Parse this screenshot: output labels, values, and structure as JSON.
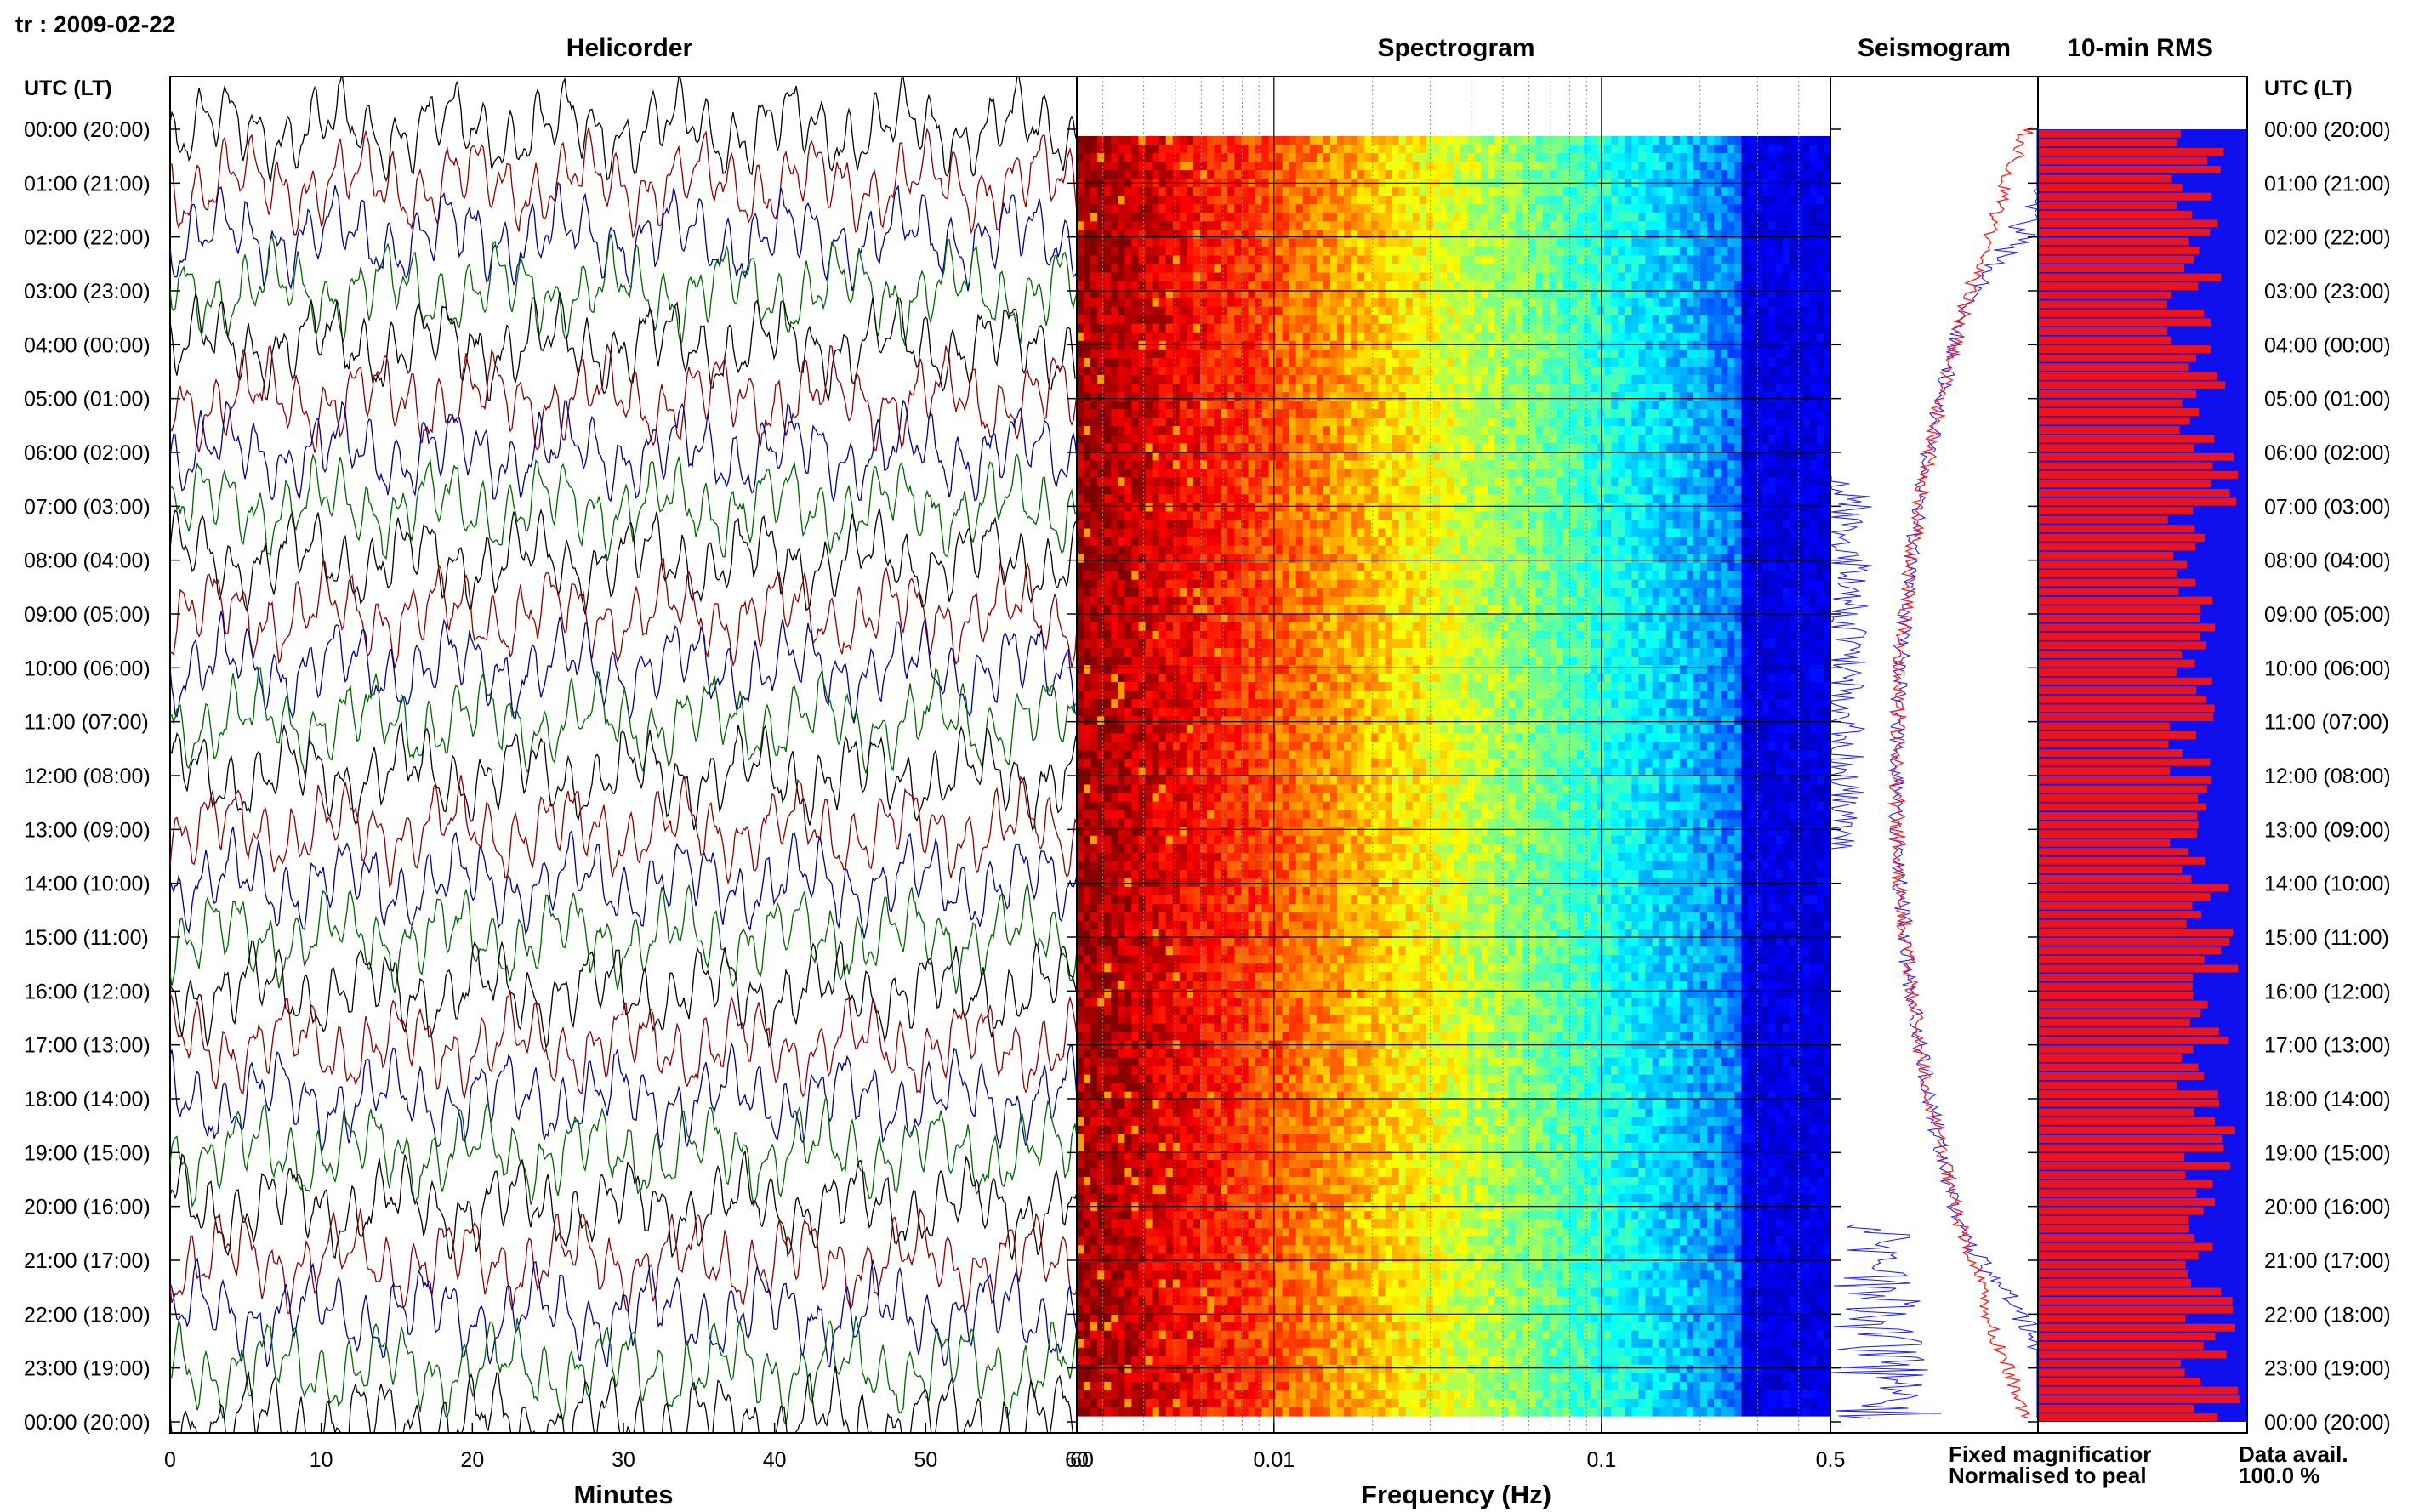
{
  "header": {
    "station_date": "tr : 2009-02-22"
  },
  "panels": {
    "helicorder": "Helicorder",
    "spectrogram": "Spectrogram",
    "seismogram": "Seismogram",
    "rms": "10-min RMS"
  },
  "axis": {
    "utc_label_left": "UTC (LT)",
    "utc_label_right": "UTC (LT)",
    "minutes_label": "Minutes",
    "frequency_label": "Frequency (Hz)"
  },
  "legend": {
    "fixed": "Fixed magnificatior",
    "fixed_color": "#1a1aff",
    "normalised": "Normalised to peal",
    "normalised_color": "#ff1a1a",
    "data_avail_label": "Data avail.",
    "data_avail_value": "100.0 %"
  },
  "colors": {
    "trace_cycle": [
      "#000000",
      "#8b0000",
      "#00008b",
      "#006400"
    ],
    "rms_bar": "#e8141e",
    "rms_bg": "#1010ee"
  },
  "chart_data": [
    {
      "type": "line",
      "title": "Helicorder",
      "xlabel": "Minutes",
      "xlim": [
        0,
        60
      ],
      "x_ticks": [
        "0",
        "10",
        "20",
        "30",
        "40",
        "50",
        "60"
      ],
      "time_labels": [
        "00:00 (20:00)",
        "01:00 (21:00)",
        "02:00 (22:00)",
        "03:00 (23:00)",
        "04:00 (00:00)",
        "05:00 (01:00)",
        "06:00 (02:00)",
        "07:00 (03:00)",
        "08:00 (04:00)",
        "09:00 (05:00)",
        "10:00 (06:00)",
        "11:00 (07:00)",
        "12:00 (08:00)",
        "13:00 (09:00)",
        "14:00 (10:00)",
        "15:00 (11:00)",
        "16:00 (12:00)",
        "17:00 (13:00)",
        "18:00 (14:00)",
        "19:00 (15:00)",
        "20:00 (16:00)",
        "21:00 (17:00)",
        "22:00 (18:00)",
        "23:00 (19:00)",
        "00:00 (20:00)"
      ]
    },
    {
      "type": "heatmap",
      "title": "Spectrogram",
      "xlabel": "Frequency (Hz)",
      "x_scale": "log",
      "xlim": [
        0.0025,
        0.5
      ],
      "x_ticks": [
        "60",
        "0.01",
        "0.1",
        "0.5"
      ]
    },
    {
      "type": "line",
      "title": "Seismogram",
      "series": [
        {
          "name": "Fixed magnificatior",
          "color": "#1a1aff"
        },
        {
          "name": "Normalised to peal",
          "color": "#ff1a1a"
        }
      ]
    },
    {
      "type": "bar",
      "title": "10-min RMS",
      "hourly_values": [
        0.88,
        0.86,
        0.9,
        0.83,
        0.88,
        0.86,
        0.96,
        0.84,
        0.87,
        0.91,
        0.88,
        0.86,
        0.85,
        0.84,
        0.93,
        0.95,
        0.92,
        0.89,
        0.93,
        0.91,
        0.92,
        0.95,
        0.93,
        0.96
      ],
      "footer_label": "Data avail.",
      "footer_value": "100.0 %"
    }
  ]
}
